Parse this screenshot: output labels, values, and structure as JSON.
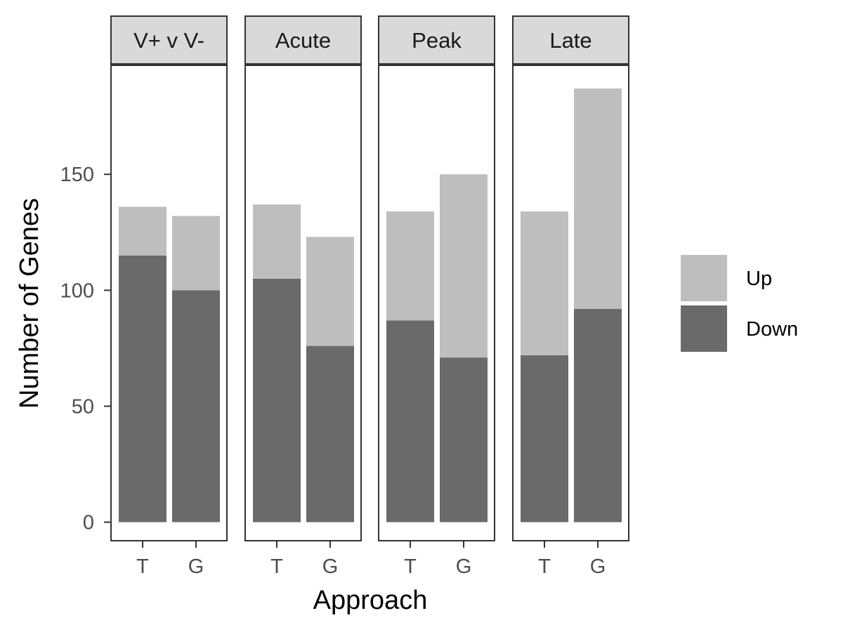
{
  "chart_data": {
    "type": "bar",
    "stacked": true,
    "facets": [
      {
        "label": "V+ v V-",
        "categories": [
          "T",
          "G"
        ],
        "down": [
          115,
          100
        ],
        "up": [
          21,
          32
        ]
      },
      {
        "label": "Acute",
        "categories": [
          "T",
          "G"
        ],
        "down": [
          105,
          76
        ],
        "up": [
          32,
          47
        ]
      },
      {
        "label": "Peak",
        "categories": [
          "T",
          "G"
        ],
        "down": [
          87,
          71
        ],
        "up": [
          47,
          79
        ]
      },
      {
        "label": "Late",
        "categories": [
          "T",
          "G"
        ],
        "down": [
          72,
          92
        ],
        "up": [
          62,
          95
        ]
      }
    ],
    "series": [
      {
        "name": "Up",
        "color": "#bebebe"
      },
      {
        "name": "Down",
        "color": "#6a6a6a"
      }
    ],
    "xlabel": "Approach",
    "ylabel": "Number of Genes",
    "ylim": [
      -8,
      197
    ],
    "yticks": [
      0,
      50,
      100,
      150
    ],
    "ytick_labels": [
      "0",
      "50",
      "100",
      "150"
    ],
    "grid": false,
    "legend_position": "right"
  }
}
